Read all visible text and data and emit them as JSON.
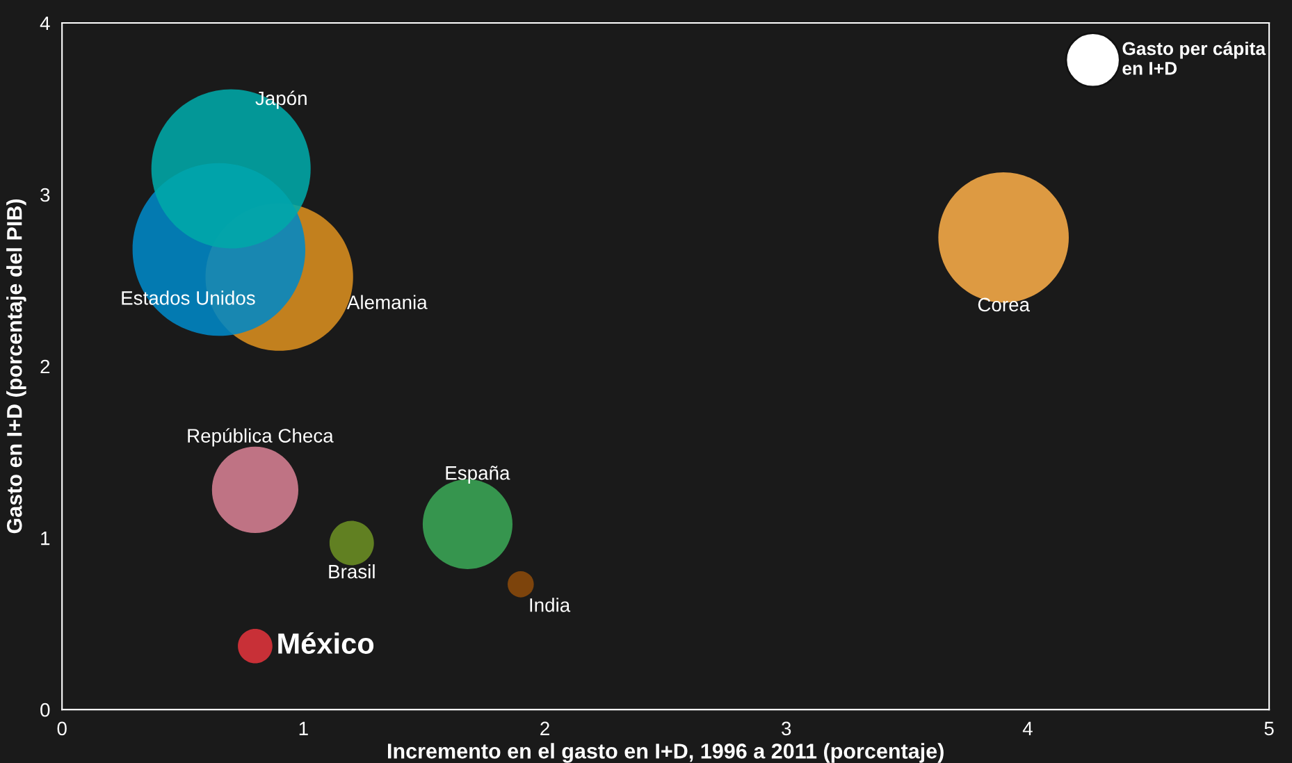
{
  "chart_data": {
    "type": "bubble",
    "xlabel": "Incremento en el gasto en I+D, 1996 a 2011 (porcentaje)",
    "ylabel": "Gasto en I+D (porcentaje del PIB)",
    "xlim": [
      0,
      5
    ],
    "xticks": [
      0,
      1,
      2,
      3,
      4,
      5
    ],
    "ylim": [
      0,
      4
    ],
    "yticks": [
      0,
      1,
      2,
      3,
      4
    ],
    "grid": false,
    "legend": false,
    "annotations": [
      "Gasto per cápita en I+D"
    ],
    "series": [
      {
        "name": "Alemania",
        "color": "#d98e1f",
        "x": [
          0.9
        ],
        "values": [
          2.52
        ],
        "sizes": [
          0.73
        ]
      },
      {
        "name": "Estados Unidos",
        "color": "#0088c6",
        "x": [
          0.65
        ],
        "values": [
          2.68
        ],
        "sizes": [
          1
        ]
      },
      {
        "name": "Japón",
        "color": "#00a9a9",
        "x": [
          0.7
        ],
        "values": [
          3.15
        ],
        "sizes": [
          0.85
        ]
      },
      {
        "name": "Corea",
        "color": "#f8ac48",
        "x": [
          3.9
        ],
        "values": [
          2.75
        ],
        "sizes": [
          0.57
        ]
      },
      {
        "name": "República Checa",
        "color": "#d67f93",
        "x": [
          0.8
        ],
        "values": [
          1.28
        ],
        "sizes": [
          0.25
        ]
      },
      {
        "name": "Brasil",
        "color": "#6b8e23",
        "x": [
          1.2
        ],
        "values": [
          0.97
        ],
        "sizes": [
          0.066
        ]
      },
      {
        "name": "España",
        "color": "#3aa655",
        "x": [
          1.68
        ],
        "values": [
          1.08
        ],
        "sizes": [
          0.27
        ]
      },
      {
        "name": "India",
        "color": "#8b4a0a",
        "x": [
          1.9
        ],
        "values": [
          0.73
        ],
        "sizes": [
          0.023
        ]
      },
      {
        "name": "México",
        "color": "#e0333b",
        "x": [
          0.8
        ],
        "values": [
          0.37
        ],
        "sizes": [
          0.04
        ]
      }
    ]
  }
}
